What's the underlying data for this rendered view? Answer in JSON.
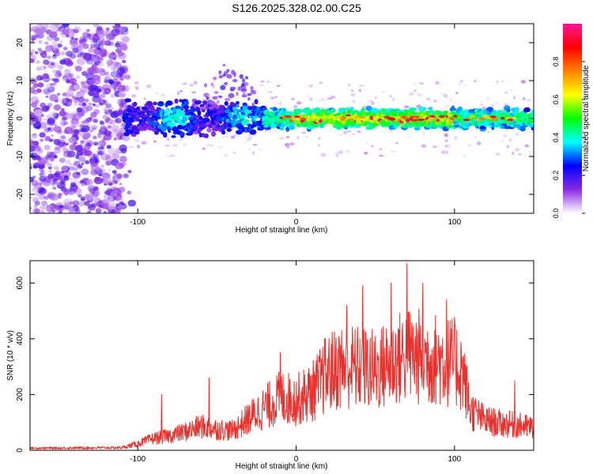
{
  "figure_title": "S126.2025.328.02.00.C25",
  "colorbar": {
    "label": "Normalized spectral amplitude",
    "ticks": [
      0.0,
      0.2,
      0.4,
      0.6,
      0.8
    ],
    "tick_labels": [
      "0.0",
      "0.2",
      "0.4",
      "0.6",
      "0.8"
    ],
    "colors": [
      "#ffffff",
      "#8a2be2",
      "#0000ff",
      "#00ffff",
      "#00ff00",
      "#ffff00",
      "#ff8000",
      "#ff0000",
      "#ff1493"
    ]
  },
  "chart_data": [
    {
      "type": "heatmap",
      "title": "",
      "xlabel": "Height of straight line (km)",
      "ylabel": "Frequency (Hz)",
      "xlim": [
        -168,
        150
      ],
      "ylim": [
        -25,
        25
      ],
      "xticks": [
        -100,
        0,
        100
      ],
      "xtick_labels": [
        "-100",
        "0",
        "100"
      ],
      "yticks": [
        -20,
        -10,
        0,
        10,
        20
      ],
      "ytick_labels": [
        "-20",
        "-10",
        "0",
        "10",
        "20"
      ],
      "zlim": [
        0,
        1
      ],
      "description_values": {
        "noise_region_x": [
          -168,
          -108
        ],
        "band_center_frequency": 0,
        "band_half_width": 4,
        "peak_region_x": [
          0,
          100
        ],
        "peak_amplitude": 0.95
      }
    },
    {
      "type": "line",
      "title": "",
      "xlabel": "Height of straight line (km)",
      "ylabel": "SNR (10 * v/v)",
      "xlim": [
        -168,
        150
      ],
      "ylim": [
        0,
        680
      ],
      "xticks": [
        -100,
        0,
        100
      ],
      "xtick_labels": [
        "-100",
        "0",
        "100"
      ],
      "yticks": [
        0,
        200,
        400,
        600
      ],
      "ytick_labels": [
        "0",
        "200",
        "400",
        "600"
      ],
      "color": "#e8302c",
      "envelope": {
        "x": [
          -168,
          -110,
          -100,
          -90,
          -80,
          -70,
          -60,
          -50,
          -40,
          -30,
          -20,
          -10,
          0,
          10,
          20,
          30,
          40,
          50,
          60,
          70,
          80,
          90,
          100,
          105,
          110,
          120,
          130,
          140,
          150
        ],
        "y": [
          8,
          10,
          25,
          45,
          55,
          70,
          90,
          80,
          75,
          120,
          160,
          200,
          190,
          220,
          290,
          320,
          310,
          300,
          330,
          360,
          350,
          340,
          330,
          300,
          150,
          110,
          100,
          95,
          85
        ]
      },
      "spikes": [
        {
          "x": -85,
          "y": 200
        },
        {
          "x": -55,
          "y": 260
        },
        {
          "x": -10,
          "y": 350
        },
        {
          "x": 18,
          "y": 400
        },
        {
          "x": 32,
          "y": 520
        },
        {
          "x": 42,
          "y": 590
        },
        {
          "x": 60,
          "y": 600
        },
        {
          "x": 70,
          "y": 670
        },
        {
          "x": 80,
          "y": 600
        },
        {
          "x": 95,
          "y": 540
        },
        {
          "x": 138,
          "y": 250
        }
      ]
    }
  ]
}
